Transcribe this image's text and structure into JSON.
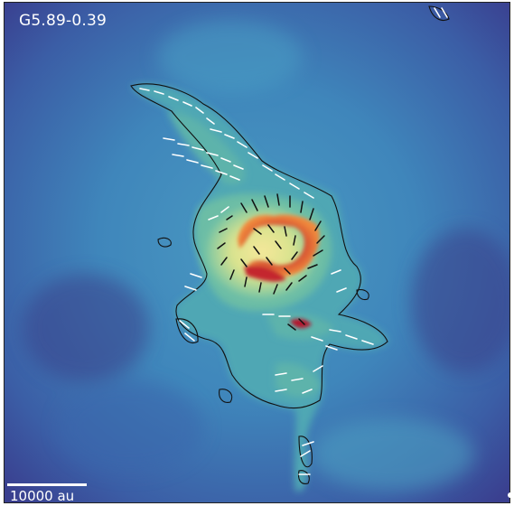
{
  "figure": {
    "source_label": "G5.89-0.39",
    "scalebar_label": "10000 au",
    "colormap": "spectral_r",
    "colors": {
      "background_low": "#3a3f8f",
      "background_mid": "#3e7fb8",
      "emission_mid": "#5db5a8",
      "emission_high": "#e8e08a",
      "peak": "#b3142e",
      "contour": "#111111",
      "vectors_inner": "#111111",
      "vectors_outer": "#ffffff"
    }
  }
}
